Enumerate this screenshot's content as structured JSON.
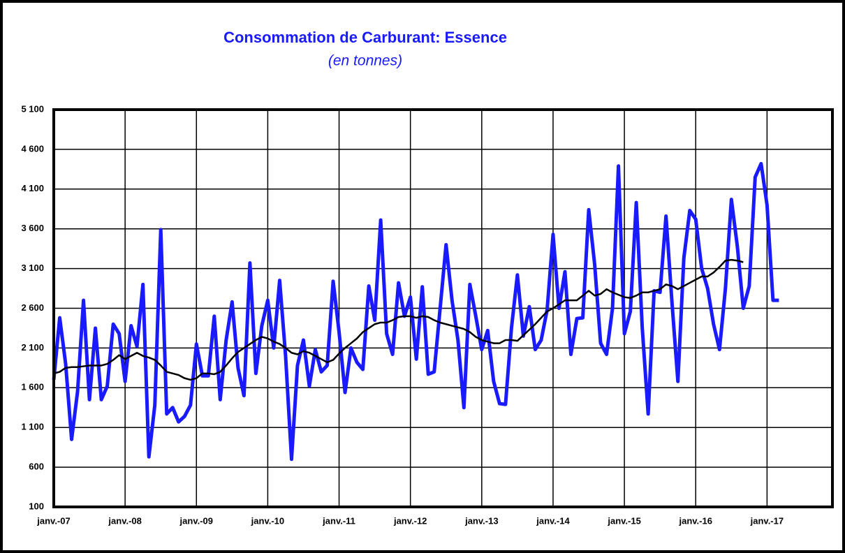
{
  "chart_data": {
    "type": "line",
    "title": "Consommation de Carburant: Essence",
    "subtitle": "(en tonnes)",
    "categories": [
      "janv.-07",
      null,
      null,
      null,
      null,
      null,
      null,
      null,
      null,
      null,
      null,
      null,
      "janv.-08",
      null,
      null,
      null,
      null,
      null,
      null,
      null,
      null,
      null,
      null,
      null,
      "janv.-09",
      null,
      null,
      null,
      null,
      null,
      null,
      null,
      null,
      null,
      null,
      null,
      "janv.-10",
      null,
      null,
      null,
      null,
      null,
      null,
      null,
      null,
      null,
      null,
      null,
      "janv.-11",
      null,
      null,
      null,
      null,
      null,
      null,
      null,
      null,
      null,
      null,
      null,
      "janv.-12",
      null,
      null,
      null,
      null,
      null,
      null,
      null,
      null,
      null,
      null,
      null,
      "janv.-13",
      null,
      null,
      null,
      null,
      null,
      null,
      null,
      null,
      null,
      null,
      null,
      "janv.-14",
      null,
      null,
      null,
      null,
      null,
      null,
      null,
      null,
      null,
      null,
      null,
      "janv.-15",
      null,
      null,
      null,
      null,
      null,
      null,
      null,
      null,
      null,
      null,
      null,
      "janv.-16",
      null,
      null,
      null,
      null,
      null,
      null,
      null,
      null,
      null,
      null,
      null,
      "janv.-17",
      null,
      null,
      null,
      null,
      null,
      null,
      null,
      null,
      null,
      null,
      null
    ],
    "series": [
      {
        "color": "#1a1aff",
        "values": [
          1700,
          2480,
          1900,
          950,
          1550,
          2700,
          1450,
          2350,
          1450,
          1620,
          2400,
          2280,
          1680,
          2380,
          2120,
          2900,
          730,
          1380,
          3590,
          1270,
          1350,
          1170,
          1240,
          1380,
          2150,
          1750,
          1750,
          2500,
          1450,
          2200,
          2680,
          1850,
          1500,
          3170,
          1780,
          2380,
          2700,
          2100,
          2950,
          2000,
          700,
          1880,
          2200,
          1620,
          2080,
          1800,
          1880,
          2940,
          2300,
          1540,
          2100,
          1920,
          1830,
          2880,
          2450,
          3710,
          2280,
          2020,
          2920,
          2500,
          2740,
          1960,
          2870,
          1770,
          1800,
          2600,
          3400,
          2700,
          2200,
          1350,
          2900,
          2500,
          2080,
          2320,
          1680,
          1400,
          1390,
          2350,
          3020,
          2250,
          2620,
          2080,
          2200,
          2580,
          3530,
          2600,
          3060,
          2020,
          2470,
          2480,
          3840,
          3150,
          2160,
          2020,
          2600,
          4390,
          2280,
          2560,
          3930,
          2360,
          1270,
          2820,
          2800,
          3760,
          2680,
          1680,
          3230,
          3830,
          3720,
          3100,
          2850,
          2400,
          2080,
          2850,
          3970,
          3380,
          2600,
          2880,
          4250,
          4420,
          3900,
          2700,
          2700,
          null,
          null,
          null,
          null,
          null,
          null,
          null,
          null,
          null
        ]
      },
      {
        "color": "#000000",
        "values": [
          1780,
          1800,
          1850,
          1860,
          1860,
          1870,
          1880,
          1880,
          1880,
          1900,
          1950,
          2010,
          1960,
          2000,
          2040,
          2000,
          1980,
          1950,
          1880,
          1800,
          1780,
          1760,
          1720,
          1700,
          1720,
          1780,
          1780,
          1770,
          1800,
          1880,
          1970,
          2050,
          2100,
          2150,
          2200,
          2240,
          2220,
          2180,
          2150,
          2100,
          2040,
          2020,
          2060,
          2040,
          2000,
          1960,
          1920,
          1950,
          2030,
          2100,
          2160,
          2220,
          2300,
          2350,
          2400,
          2420,
          2420,
          2450,
          2490,
          2500,
          2500,
          2480,
          2500,
          2490,
          2450,
          2420,
          2400,
          2380,
          2360,
          2340,
          2300,
          2240,
          2200,
          2180,
          2160,
          2160,
          2200,
          2200,
          2190,
          2260,
          2330,
          2400,
          2480,
          2560,
          2600,
          2650,
          2700,
          2700,
          2700,
          2760,
          2820,
          2760,
          2780,
          2840,
          2800,
          2770,
          2740,
          2730,
          2760,
          2800,
          2800,
          2820,
          2840,
          2900,
          2880,
          2840,
          2880,
          2920,
          2960,
          3000,
          3000,
          3050,
          3120,
          3200,
          3210,
          3200,
          3180,
          null,
          null,
          null,
          null,
          null,
          null,
          null,
          null,
          null,
          null,
          null,
          null,
          null,
          null,
          null
        ]
      }
    ],
    "ylim": [
      100,
      5100
    ],
    "yticks": [
      100,
      600,
      {
        "value": 1100,
        "label": "1 100"
      },
      {
        "value": 1600,
        "label": "1 600"
      },
      {
        "value": 2100,
        "label": "2 100"
      },
      {
        "value": 2600,
        "label": "2 600"
      },
      {
        "value": 3100,
        "label": "3 100"
      },
      {
        "value": 3600,
        "label": "3 600"
      },
      {
        "value": 4100,
        "label": "4 100"
      },
      {
        "value": 4600,
        "label": "4 600"
      },
      {
        "value": 5100,
        "label": "5 100"
      }
    ],
    "grid": true
  }
}
